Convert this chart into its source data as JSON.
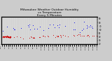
{
  "title": "Milwaukee Weather Outdoor Humidity\nvs Temperature\nEvery 5 Minutes",
  "title_fontsize": 3.2,
  "bg_color": "#cccccc",
  "plot_bg_color": "#d8d8d8",
  "blue_color": "#0000ee",
  "red_color": "#cc0000",
  "marker_size": 0.4,
  "ylim": [
    20,
    95
  ],
  "xlim": [
    0,
    288
  ],
  "yticks": [
    20,
    30,
    40,
    50,
    60,
    70,
    80,
    90
  ],
  "ytick_labels_right": [
    "2.",
    "3.",
    "4.",
    "5.",
    "6.",
    "7.",
    "8.",
    "9."
  ],
  "seed": 7
}
